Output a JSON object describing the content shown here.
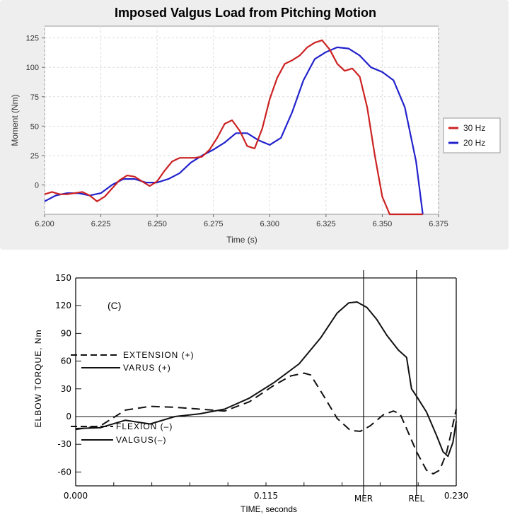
{
  "chart_data": [
    {
      "type": "line",
      "title": "Imposed Valgus Load from Pitching Motion",
      "xlabel": "Time (s)",
      "ylabel": "Moment (Nm)",
      "xlim": [
        6.2,
        6.375
      ],
      "ylim": [
        -25,
        135
      ],
      "x_ticks": [
        "6.200",
        "6.225",
        "6.250",
        "6.275",
        "6.300",
        "6.325",
        "6.350",
        "6.375"
      ],
      "y_ticks": [
        "0",
        "25",
        "50",
        "75",
        "100",
        "125"
      ],
      "grid": true,
      "legend_position": "right",
      "series": [
        {
          "name": "30 Hz",
          "color": "#cc2222",
          "x": [
            6.2,
            6.2033,
            6.2067,
            6.21,
            6.2133,
            6.2167,
            6.22,
            6.2233,
            6.2267,
            6.23,
            6.2333,
            6.2367,
            6.24,
            6.2433,
            6.2467,
            6.25,
            6.2533,
            6.2567,
            6.26,
            6.2633,
            6.2667,
            6.27,
            6.2733,
            6.2767,
            6.28,
            6.2833,
            6.2867,
            6.29,
            6.2933,
            6.2967,
            6.3,
            6.3033,
            6.3067,
            6.31,
            6.3133,
            6.3167,
            6.32,
            6.3233,
            6.3267,
            6.33,
            6.3333,
            6.3367,
            6.34,
            6.3433,
            6.3467,
            6.35,
            6.3533,
            6.3567,
            6.36,
            6.3633,
            6.3667,
            6.368
          ],
          "values": [
            -8,
            -6,
            -8,
            -8,
            -7,
            -6,
            -9,
            -14,
            -10,
            -3,
            4,
            8,
            7,
            3,
            -1,
            3,
            12,
            20,
            23,
            23,
            23,
            24,
            30,
            40,
            52,
            55,
            46,
            33,
            31,
            48,
            73,
            91,
            103,
            106,
            110,
            117,
            121,
            123,
            115,
            103,
            97,
            99,
            92,
            66,
            25,
            -10,
            -25,
            -25,
            -25,
            -25,
            -25,
            -25
          ]
        },
        {
          "name": "20 Hz",
          "color": "#2222cc",
          "x": [
            6.2,
            6.205,
            6.21,
            6.215,
            6.22,
            6.225,
            6.23,
            6.235,
            6.24,
            6.245,
            6.25,
            6.255,
            6.26,
            6.265,
            6.27,
            6.275,
            6.28,
            6.285,
            6.29,
            6.295,
            6.3,
            6.305,
            6.31,
            6.315,
            6.32,
            6.325,
            6.33,
            6.335,
            6.34,
            6.345,
            6.35,
            6.355,
            6.36,
            6.365,
            6.368
          ],
          "values": [
            -14,
            -9,
            -7,
            -7,
            -9,
            -7,
            0,
            5,
            5,
            2,
            2,
            5,
            10,
            19,
            25,
            30,
            36,
            44,
            44,
            38,
            34,
            40,
            62,
            89,
            107,
            113,
            117,
            116,
            110,
            100,
            96,
            89,
            66,
            20,
            -25
          ]
        }
      ]
    },
    {
      "type": "line",
      "title": "",
      "annotation": "(C)",
      "xlabel": "TIME, seconds",
      "ylabel": "ELBOW TORQUE, Nm",
      "xlim": [
        0.0,
        0.23
      ],
      "ylim": [
        -75,
        150
      ],
      "x_ticks": [
        "0.000",
        "0.115",
        "0.230"
      ],
      "event_markers": [
        {
          "label": "MER",
          "x": 0.174
        },
        {
          "label": "REL",
          "x": 0.206
        }
      ],
      "y_ticks": [
        "150",
        "120",
        "90",
        "60",
        "30",
        "0",
        "-30",
        "-60"
      ],
      "grid": false,
      "legend_position": "left",
      "legend_entries": [
        {
          "label": "EXTENSION (+)",
          "series": "dashed",
          "style": "dashed"
        },
        {
          "label": "VARUS (+)",
          "series": "solid",
          "style": "solid"
        },
        {
          "label": "FLEXION (–)",
          "series": "dashed",
          "style": "dashed"
        },
        {
          "label": "VALGUS(–)",
          "series": "solid",
          "style": "solid"
        }
      ],
      "series": [
        {
          "style": "dashed",
          "x": [
            0.0,
            0.015,
            0.03,
            0.045,
            0.06,
            0.075,
            0.09,
            0.105,
            0.12,
            0.13,
            0.138,
            0.142,
            0.15,
            0.158,
            0.166,
            0.172,
            0.178,
            0.186,
            0.192,
            0.196,
            0.2,
            0.206,
            0.212,
            0.216,
            0.22,
            0.224,
            0.226,
            0.23
          ],
          "values": [
            -14,
            -10,
            7,
            11,
            10,
            8,
            6,
            16,
            34,
            44,
            47,
            45,
            22,
            -2,
            -15,
            -16,
            -10,
            2,
            6,
            3,
            -13,
            -38,
            -58,
            -62,
            -58,
            -40,
            -25,
            8
          ]
        },
        {
          "style": "solid",
          "x": [
            0.0,
            0.015,
            0.03,
            0.045,
            0.06,
            0.075,
            0.09,
            0.105,
            0.12,
            0.135,
            0.148,
            0.158,
            0.165,
            0.17,
            0.176,
            0.182,
            0.188,
            0.195,
            0.2,
            0.203,
            0.206,
            0.212,
            0.218,
            0.222,
            0.225,
            0.228,
            0.23
          ],
          "values": [
            -13,
            -12,
            -4,
            -8,
            0,
            3,
            8,
            20,
            37,
            57,
            85,
            112,
            123,
            124,
            118,
            105,
            88,
            72,
            64,
            30,
            22,
            5,
            -20,
            -38,
            -43,
            -28,
            -5
          ]
        }
      ]
    }
  ],
  "legend_title": ""
}
